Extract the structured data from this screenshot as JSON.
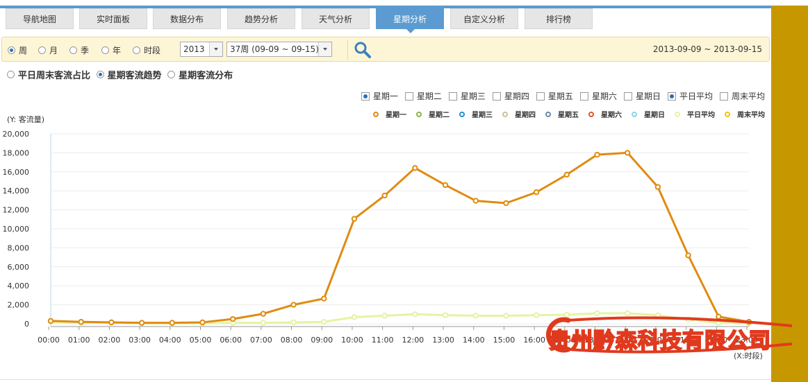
{
  "tabs": [
    {
      "label": "导航地图",
      "active": false
    },
    {
      "label": "实时面板",
      "active": false
    },
    {
      "label": "数据分布",
      "active": false
    },
    {
      "label": "趋势分析",
      "active": false
    },
    {
      "label": "天气分析",
      "active": false
    },
    {
      "label": "星期分析",
      "active": true
    },
    {
      "label": "自定义分析",
      "active": false
    },
    {
      "label": "排行榜",
      "active": false
    }
  ],
  "filter": {
    "periods": [
      {
        "label": "周",
        "checked": true
      },
      {
        "label": "月",
        "checked": false
      },
      {
        "label": "季",
        "checked": false
      },
      {
        "label": "年",
        "checked": false
      },
      {
        "label": "时段",
        "checked": false
      }
    ],
    "year": "2013",
    "week": "37周 (09-09 ~ 09-15)",
    "date_range": "2013-09-09 ~ 2013-09-15"
  },
  "modes": [
    {
      "label": "平日周末客流占比",
      "checked": false
    },
    {
      "label": "星期客流趋势",
      "checked": true
    },
    {
      "label": "星期客流分布",
      "checked": false
    }
  ],
  "series_toggles": [
    {
      "label": "星期一",
      "checked": true
    },
    {
      "label": "星期二",
      "checked": false
    },
    {
      "label": "星期三",
      "checked": false
    },
    {
      "label": "星期四",
      "checked": false
    },
    {
      "label": "星期五",
      "checked": false
    },
    {
      "label": "星期六",
      "checked": false
    },
    {
      "label": "星期日",
      "checked": false
    },
    {
      "label": "平日平均",
      "checked": true
    },
    {
      "label": "周末平均",
      "checked": false
    }
  ],
  "watermark": "贵州黔森科技有限公司",
  "colors": {
    "accent": "#5b9bd1",
    "side_band": "#c79700",
    "monday": "#e08b10",
    "weekday_avg": "#e5f3a3"
  },
  "chart_data": {
    "type": "line",
    "ylabel": "(Y: 客流量)",
    "xlabel": "(X:时段)",
    "ylim": [
      0,
      20000
    ],
    "yticks": [
      0,
      2000,
      4000,
      6000,
      8000,
      10000,
      12000,
      14000,
      16000,
      18000,
      20000
    ],
    "ytick_labels": [
      "0",
      "2,000",
      "4,000",
      "6,000",
      "8,000",
      "10,000",
      "12,000",
      "14,000",
      "16,000",
      "18,000",
      "20,000"
    ],
    "x": [
      "00:00",
      "01:00",
      "02:00",
      "03:00",
      "04:00",
      "05:00",
      "06:00",
      "07:00",
      "08:00",
      "09:00",
      "10:00",
      "11:00",
      "12:00",
      "13:00",
      "14:00",
      "15:00",
      "16:00",
      "17:00",
      "18:00",
      "19:00",
      "20:00",
      "21:00",
      "22:00",
      "23:00"
    ],
    "grid": true,
    "legend": [
      {
        "name": "星期一",
        "color": "#e08b10"
      },
      {
        "name": "星期二",
        "color": "#8ab54a"
      },
      {
        "name": "星期三",
        "color": "#1f8fd6"
      },
      {
        "name": "星期四",
        "color": "#c8c0a0"
      },
      {
        "name": "星期五",
        "color": "#6a8aa8"
      },
      {
        "name": "星期六",
        "color": "#e2552b"
      },
      {
        "name": "星期日",
        "color": "#8fd4e6"
      },
      {
        "name": "平日平均",
        "color": "#e5f3a3"
      },
      {
        "name": "周末平均",
        "color": "#f2c10f"
      }
    ],
    "series": [
      {
        "name": "星期一",
        "color": "#e08b10",
        "values": [
          300,
          200,
          150,
          100,
          100,
          150,
          500,
          1050,
          2000,
          2650,
          11050,
          13500,
          16400,
          14600,
          12950,
          12700,
          13850,
          15700,
          17800,
          18000,
          14400,
          7200,
          750,
          200
        ]
      },
      {
        "name": "平日平均",
        "color": "#e5f3a3",
        "values": [
          200,
          100,
          100,
          50,
          50,
          50,
          100,
          100,
          150,
          200,
          700,
          850,
          1000,
          900,
          850,
          850,
          900,
          950,
          1100,
          1100,
          900,
          450,
          100,
          50
        ]
      }
    ]
  }
}
